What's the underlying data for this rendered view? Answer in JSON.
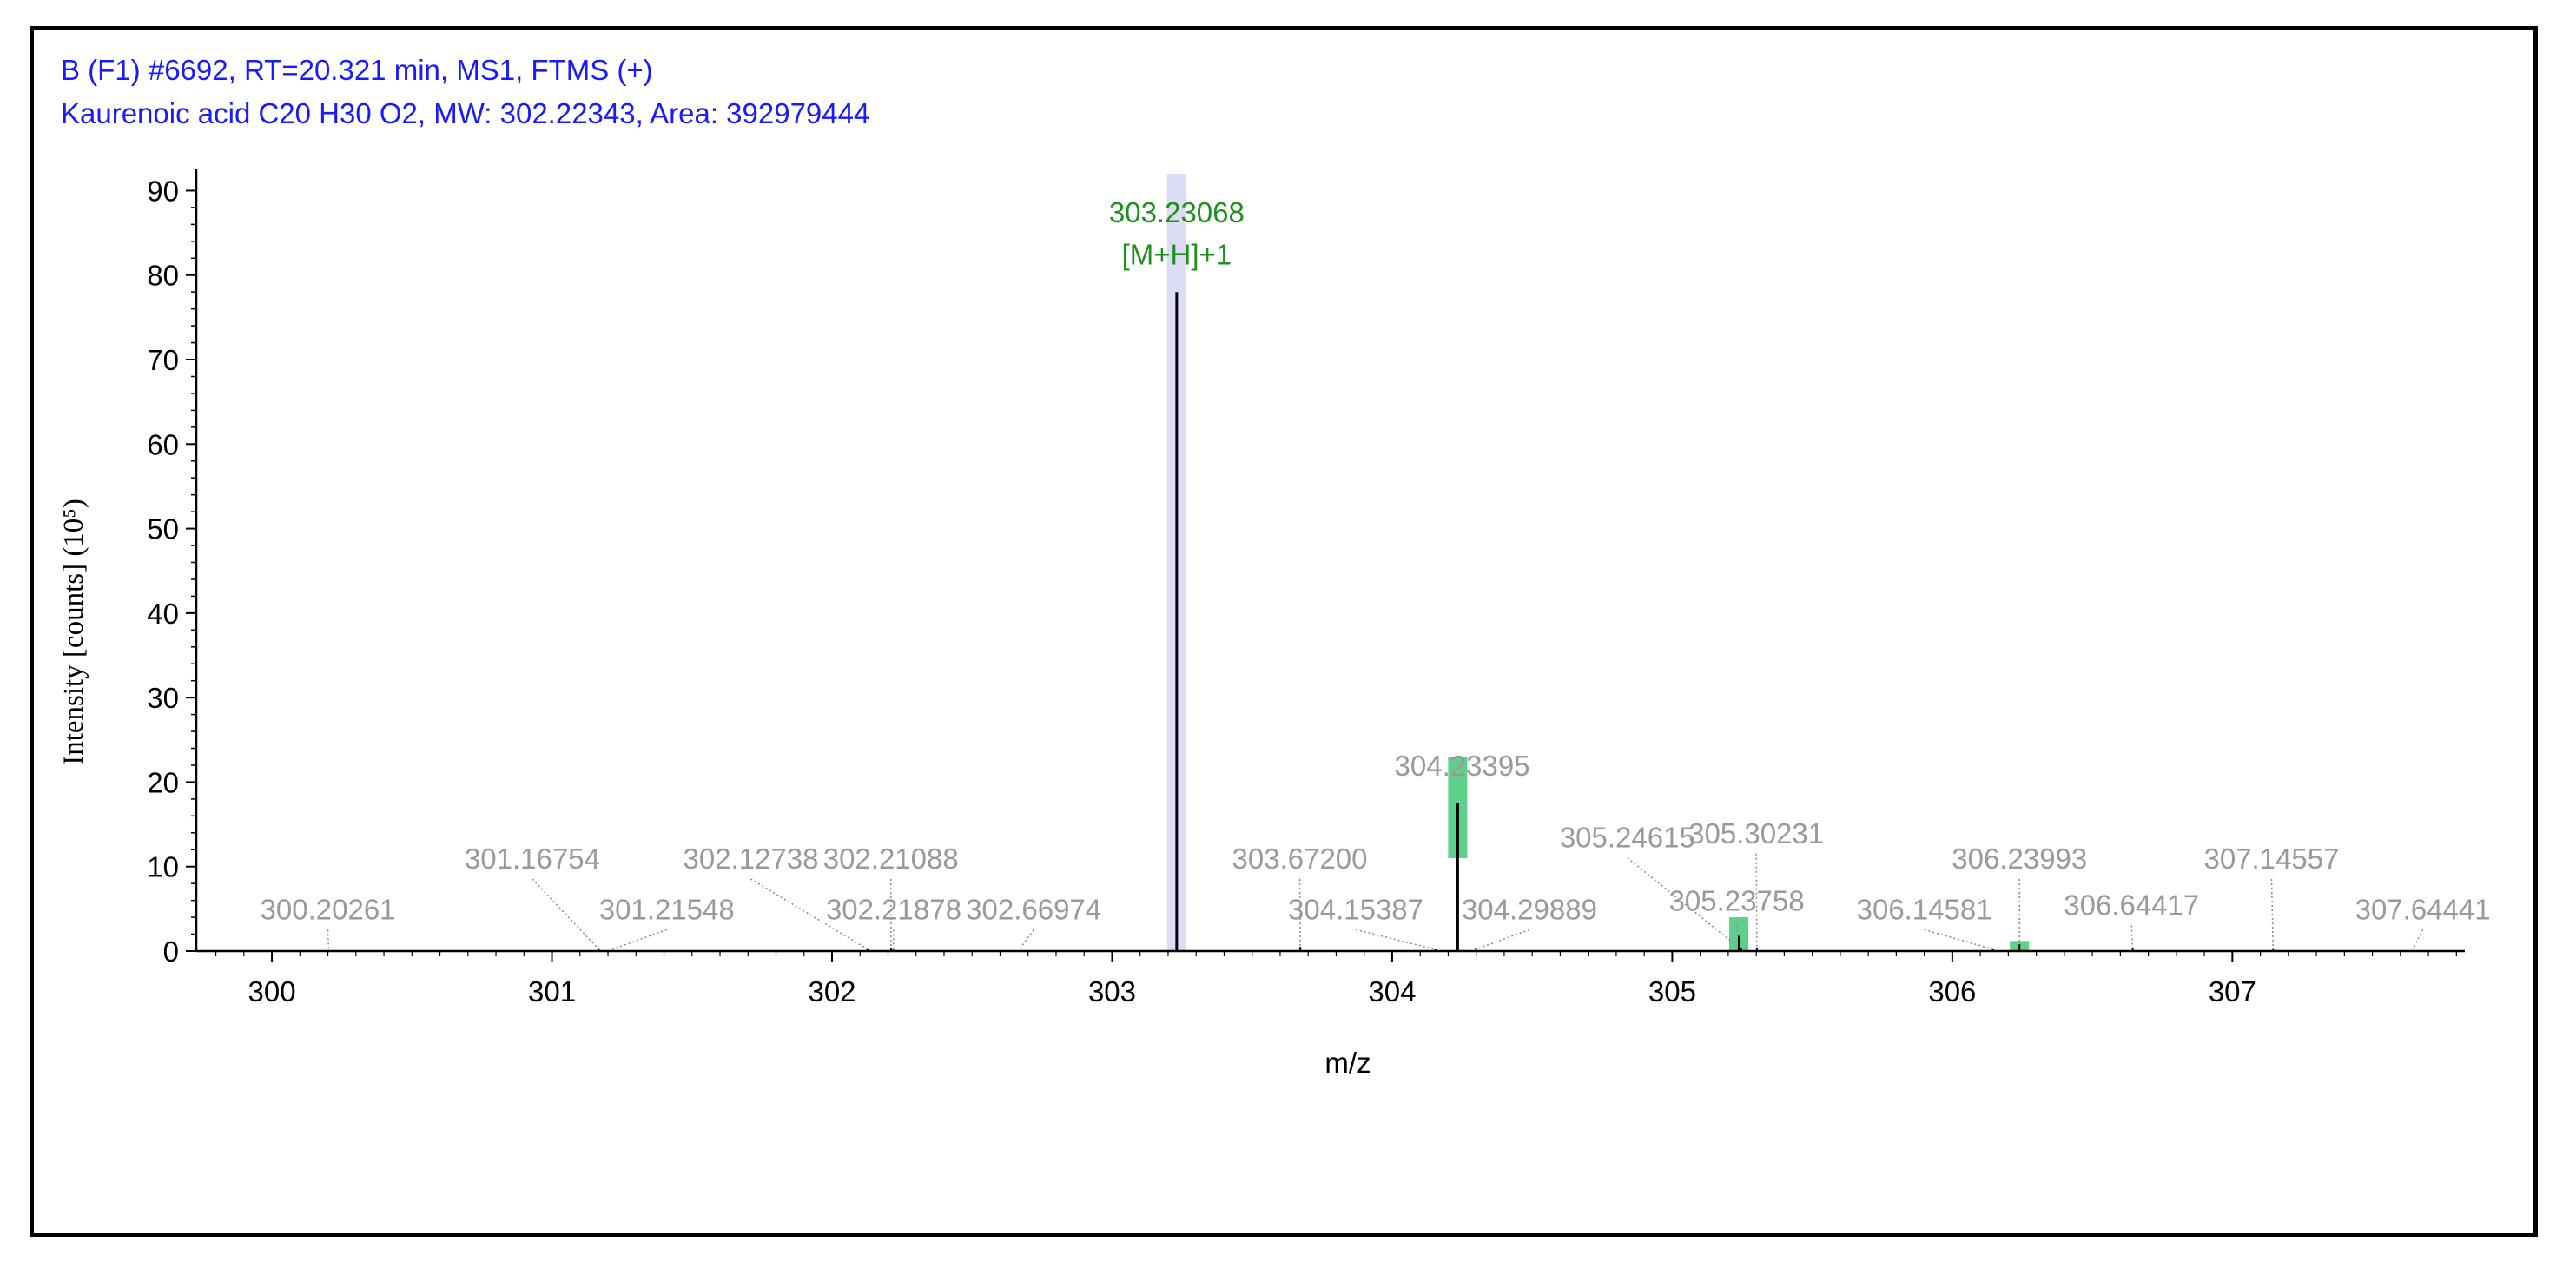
{
  "header": {
    "line1": "B (F1) #6692, RT=20.321 min, MS1, FTMS (+)",
    "line2": "Kaurenoic acid C20 H30 O2, MW: 302.22343, Area: 392979444"
  },
  "chart_data": {
    "type": "bar",
    "xlabel": "m/z",
    "ylabel": "Intensity [counts] (10⁵)",
    "xlim": [
      299.73,
      307.83
    ],
    "ylim": [
      0,
      92
    ],
    "xticks": [
      300,
      301,
      302,
      303,
      304,
      305,
      306,
      307
    ],
    "yticks": [
      0,
      10,
      20,
      30,
      40,
      50,
      60,
      70,
      80,
      90
    ],
    "main_peak": {
      "mz": 303.23068,
      "intensity": 78,
      "label": "303.23068",
      "annotation": "[M+H]+1",
      "color": "#1f8f1f"
    },
    "isotope_bars": [
      {
        "mz": 303.23068,
        "bottom": 0,
        "top": 92,
        "color": "#dcdcf5"
      },
      {
        "mz": 304.23395,
        "bottom": 11,
        "top": 23,
        "color": "#5fd08a"
      },
      {
        "mz": 305.23758,
        "bottom": 0,
        "top": 4,
        "color": "#5fd08a"
      },
      {
        "mz": 306.23993,
        "bottom": 0,
        "top": 1.2,
        "color": "#5fd08a"
      }
    ],
    "peaks": [
      {
        "mz": 300.20261,
        "intensity": 0.1,
        "label": "300.20261",
        "label_mz": 300.2,
        "label_y": 5
      },
      {
        "mz": 301.16754,
        "intensity": 0.2,
        "label": "301.16754",
        "label_mz": 300.93,
        "label_y": 11
      },
      {
        "mz": 301.21548,
        "intensity": 0.1,
        "label": "301.21548",
        "label_mz": 301.41,
        "label_y": 5
      },
      {
        "mz": 302.12738,
        "intensity": 0.2,
        "label": "302.12738",
        "label_mz": 301.71,
        "label_y": 11
      },
      {
        "mz": 302.21088,
        "intensity": 0.3,
        "label": "302.21088",
        "label_mz": 302.21,
        "label_y": 11
      },
      {
        "mz": 302.21878,
        "intensity": 0.2,
        "label": "302.21878",
        "label_mz": 302.22,
        "label_y": 5
      },
      {
        "mz": 302.66974,
        "intensity": 0.1,
        "label": "302.66974",
        "label_mz": 302.72,
        "label_y": 5
      },
      {
        "mz": 303.672,
        "intensity": 0.5,
        "label": "303.67200",
        "label_mz": 303.67,
        "label_y": 11
      },
      {
        "mz": 304.15387,
        "intensity": 0.2,
        "label": "304.15387",
        "label_mz": 303.87,
        "label_y": 5
      },
      {
        "mz": 304.23395,
        "intensity": 17.5,
        "label": "304.23395",
        "label_mz": 304.25,
        "label_y": 22
      },
      {
        "mz": 304.29889,
        "intensity": 0.4,
        "label": "304.29889",
        "label_mz": 304.49,
        "label_y": 5
      },
      {
        "mz": 305.24615,
        "intensity": 0.3,
        "label": "305.24615",
        "label_mz": 304.84,
        "label_y": 13.5
      },
      {
        "mz": 305.23758,
        "intensity": 1.8,
        "label": "305.23758",
        "label_mz": 305.23,
        "label_y": 6
      },
      {
        "mz": 305.30231,
        "intensity": 0.4,
        "label": "305.30231",
        "label_mz": 305.3,
        "label_y": 14
      },
      {
        "mz": 306.14581,
        "intensity": 0.2,
        "label": "306.14581",
        "label_mz": 305.9,
        "label_y": 5
      },
      {
        "mz": 306.23993,
        "intensity": 0.8,
        "label": "306.23993",
        "label_mz": 306.24,
        "label_y": 11
      },
      {
        "mz": 306.64417,
        "intensity": 0.3,
        "label": "306.64417",
        "label_mz": 306.64,
        "label_y": 5.5
      },
      {
        "mz": 307.14557,
        "intensity": 0.2,
        "label": "307.14557",
        "label_mz": 307.14,
        "label_y": 11
      },
      {
        "mz": 307.64441,
        "intensity": 0.1,
        "label": "307.64441",
        "label_mz": 307.68,
        "label_y": 5
      }
    ]
  }
}
